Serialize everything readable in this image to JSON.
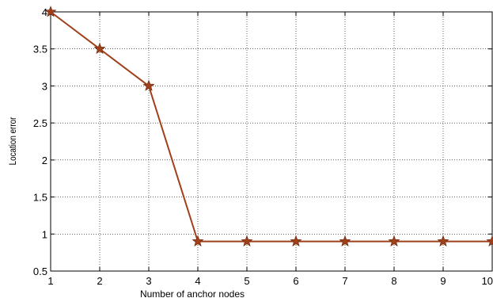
{
  "chart_data": {
    "type": "line",
    "title": "",
    "xlabel": "Number of anchor nodes",
    "ylabel": "Location error",
    "xlim": [
      1,
      10
    ],
    "ylim": [
      0.5,
      4
    ],
    "xticks": [
      1,
      2,
      3,
      4,
      5,
      6,
      7,
      8,
      9,
      10
    ],
    "yticks": [
      0.5,
      1,
      1.5,
      2,
      2.5,
      3,
      3.5,
      4
    ],
    "xtick_labels": [
      "1",
      "2",
      "3",
      "4",
      "5",
      "6",
      "7",
      "8",
      "9",
      "10"
    ],
    "ytick_labels": [
      "0.5",
      "1",
      "1.5",
      "2",
      "2.5",
      "3",
      "3.5",
      "4"
    ],
    "grid": true,
    "legend": "none",
    "series": [
      {
        "x": [
          1,
          2,
          3,
          4,
          5,
          6,
          7,
          8,
          9,
          10
        ],
        "y": [
          4,
          3.5,
          3,
          0.9,
          0.9,
          0.9,
          0.9,
          0.9,
          0.9,
          0.9
        ],
        "color": "#A0401A",
        "marker": "star"
      }
    ]
  }
}
